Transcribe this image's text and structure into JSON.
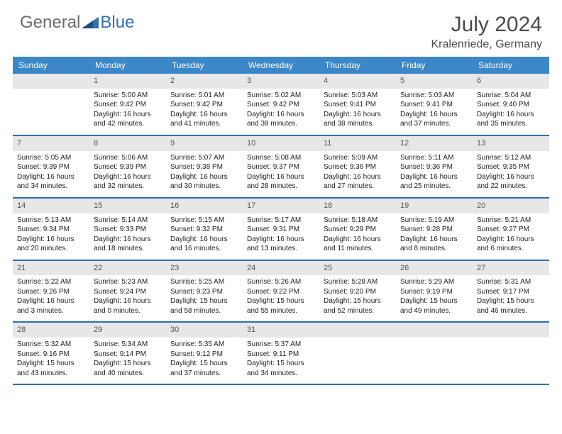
{
  "logo": {
    "general": "General",
    "blue": "Blue"
  },
  "title": "July 2024",
  "location": "Kralenriede, Germany",
  "colors": {
    "header_bg": "#3b87c8",
    "daynum_bg": "#e7e7e7",
    "row_border": "#2f6fb0",
    "logo_blue": "#2f6fb0",
    "logo_gray": "#6b6b6b"
  },
  "day_headers": [
    "Sunday",
    "Monday",
    "Tuesday",
    "Wednesday",
    "Thursday",
    "Friday",
    "Saturday"
  ],
  "weeks": [
    [
      {
        "num": "",
        "lines": []
      },
      {
        "num": "1",
        "lines": [
          "Sunrise: 5:00 AM",
          "Sunset: 9:42 PM",
          "Daylight: 16 hours and 42 minutes."
        ]
      },
      {
        "num": "2",
        "lines": [
          "Sunrise: 5:01 AM",
          "Sunset: 9:42 PM",
          "Daylight: 16 hours and 41 minutes."
        ]
      },
      {
        "num": "3",
        "lines": [
          "Sunrise: 5:02 AM",
          "Sunset: 9:42 PM",
          "Daylight: 16 hours and 39 minutes."
        ]
      },
      {
        "num": "4",
        "lines": [
          "Sunrise: 5:03 AM",
          "Sunset: 9:41 PM",
          "Daylight: 16 hours and 38 minutes."
        ]
      },
      {
        "num": "5",
        "lines": [
          "Sunrise: 5:03 AM",
          "Sunset: 9:41 PM",
          "Daylight: 16 hours and 37 minutes."
        ]
      },
      {
        "num": "6",
        "lines": [
          "Sunrise: 5:04 AM",
          "Sunset: 9:40 PM",
          "Daylight: 16 hours and 35 minutes."
        ]
      }
    ],
    [
      {
        "num": "7",
        "lines": [
          "Sunrise: 5:05 AM",
          "Sunset: 9:39 PM",
          "Daylight: 16 hours and 34 minutes."
        ]
      },
      {
        "num": "8",
        "lines": [
          "Sunrise: 5:06 AM",
          "Sunset: 9:39 PM",
          "Daylight: 16 hours and 32 minutes."
        ]
      },
      {
        "num": "9",
        "lines": [
          "Sunrise: 5:07 AM",
          "Sunset: 9:38 PM",
          "Daylight: 16 hours and 30 minutes."
        ]
      },
      {
        "num": "10",
        "lines": [
          "Sunrise: 5:08 AM",
          "Sunset: 9:37 PM",
          "Daylight: 16 hours and 28 minutes."
        ]
      },
      {
        "num": "11",
        "lines": [
          "Sunrise: 5:09 AM",
          "Sunset: 9:36 PM",
          "Daylight: 16 hours and 27 minutes."
        ]
      },
      {
        "num": "12",
        "lines": [
          "Sunrise: 5:11 AM",
          "Sunset: 9:36 PM",
          "Daylight: 16 hours and 25 minutes."
        ]
      },
      {
        "num": "13",
        "lines": [
          "Sunrise: 5:12 AM",
          "Sunset: 9:35 PM",
          "Daylight: 16 hours and 22 minutes."
        ]
      }
    ],
    [
      {
        "num": "14",
        "lines": [
          "Sunrise: 5:13 AM",
          "Sunset: 9:34 PM",
          "Daylight: 16 hours and 20 minutes."
        ]
      },
      {
        "num": "15",
        "lines": [
          "Sunrise: 5:14 AM",
          "Sunset: 9:33 PM",
          "Daylight: 16 hours and 18 minutes."
        ]
      },
      {
        "num": "16",
        "lines": [
          "Sunrise: 5:15 AM",
          "Sunset: 9:32 PM",
          "Daylight: 16 hours and 16 minutes."
        ]
      },
      {
        "num": "17",
        "lines": [
          "Sunrise: 5:17 AM",
          "Sunset: 9:31 PM",
          "Daylight: 16 hours and 13 minutes."
        ]
      },
      {
        "num": "18",
        "lines": [
          "Sunrise: 5:18 AM",
          "Sunset: 9:29 PM",
          "Daylight: 16 hours and 11 minutes."
        ]
      },
      {
        "num": "19",
        "lines": [
          "Sunrise: 5:19 AM",
          "Sunset: 9:28 PM",
          "Daylight: 16 hours and 8 minutes."
        ]
      },
      {
        "num": "20",
        "lines": [
          "Sunrise: 5:21 AM",
          "Sunset: 9:27 PM",
          "Daylight: 16 hours and 6 minutes."
        ]
      }
    ],
    [
      {
        "num": "21",
        "lines": [
          "Sunrise: 5:22 AM",
          "Sunset: 9:26 PM",
          "Daylight: 16 hours and 3 minutes."
        ]
      },
      {
        "num": "22",
        "lines": [
          "Sunrise: 5:23 AM",
          "Sunset: 9:24 PM",
          "Daylight: 16 hours and 0 minutes."
        ]
      },
      {
        "num": "23",
        "lines": [
          "Sunrise: 5:25 AM",
          "Sunset: 9:23 PM",
          "Daylight: 15 hours and 58 minutes."
        ]
      },
      {
        "num": "24",
        "lines": [
          "Sunrise: 5:26 AM",
          "Sunset: 9:22 PM",
          "Daylight: 15 hours and 55 minutes."
        ]
      },
      {
        "num": "25",
        "lines": [
          "Sunrise: 5:28 AM",
          "Sunset: 9:20 PM",
          "Daylight: 15 hours and 52 minutes."
        ]
      },
      {
        "num": "26",
        "lines": [
          "Sunrise: 5:29 AM",
          "Sunset: 9:19 PM",
          "Daylight: 15 hours and 49 minutes."
        ]
      },
      {
        "num": "27",
        "lines": [
          "Sunrise: 5:31 AM",
          "Sunset: 9:17 PM",
          "Daylight: 15 hours and 46 minutes."
        ]
      }
    ],
    [
      {
        "num": "28",
        "lines": [
          "Sunrise: 5:32 AM",
          "Sunset: 9:16 PM",
          "Daylight: 15 hours and 43 minutes."
        ]
      },
      {
        "num": "29",
        "lines": [
          "Sunrise: 5:34 AM",
          "Sunset: 9:14 PM",
          "Daylight: 15 hours and 40 minutes."
        ]
      },
      {
        "num": "30",
        "lines": [
          "Sunrise: 5:35 AM",
          "Sunset: 9:12 PM",
          "Daylight: 15 hours and 37 minutes."
        ]
      },
      {
        "num": "31",
        "lines": [
          "Sunrise: 5:37 AM",
          "Sunset: 9:11 PM",
          "Daylight: 15 hours and 34 minutes."
        ]
      },
      {
        "num": "",
        "lines": []
      },
      {
        "num": "",
        "lines": []
      },
      {
        "num": "",
        "lines": []
      }
    ]
  ]
}
